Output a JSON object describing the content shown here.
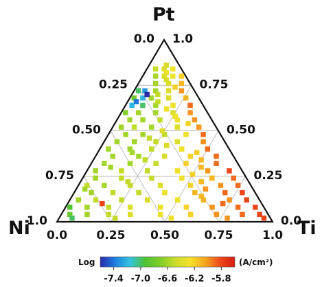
{
  "chart_data": {
    "type": "scatter",
    "subtype": "ternary",
    "components": {
      "top": "Pt",
      "left": "Ni",
      "right": "Ti"
    },
    "grid": true,
    "gridlines": [
      0.25,
      0.5,
      0.75
    ],
    "colorbar": {
      "label_left": "Log",
      "label_right": "(A/cm²)",
      "min": -7.6,
      "max": -5.6,
      "ticks": [
        "-7.4",
        "-7.0",
        "-6.6",
        "-6.2",
        "-5.8"
      ],
      "tick_values": [
        -7.4,
        -7.0,
        -6.6,
        -6.2,
        -5.8
      ],
      "colors": [
        "#2a2aa8",
        "#1f7fe0",
        "#33c4e0",
        "#4fc233",
        "#7fce2a",
        "#c8dc2a",
        "#f4e22a",
        "#f7a81f",
        "#ee4a1a",
        "#d91a12"
      ]
    },
    "axis_ticks": {
      "bottom": [
        "0.0",
        "0.25",
        "0.50",
        "0.75",
        "1.0"
      ],
      "left": [
        "0.0",
        "0.25",
        "0.50",
        "0.75",
        "1.0"
      ],
      "right": [
        "1.0",
        "0.75",
        "0.50",
        "0.25",
        "0.0"
      ]
    },
    "points_columns": [
      "Pt",
      "Ti",
      "log_current"
    ],
    "points": [
      [
        0.84,
        0.04,
        -6.5
      ],
      [
        0.84,
        0.08,
        -6.4
      ],
      [
        0.84,
        0.12,
        -6.3
      ],
      [
        0.8,
        0.06,
        -6.6
      ],
      [
        0.8,
        0.1,
        -6.4
      ],
      [
        0.8,
        0.14,
        -6.3
      ],
      [
        0.8,
        0.18,
        -6.2
      ],
      [
        0.76,
        0.08,
        -6.6
      ],
      [
        0.76,
        0.14,
        -6.4
      ],
      [
        0.76,
        0.2,
        -6.1
      ],
      [
        0.72,
        0.02,
        -7.0
      ],
      [
        0.72,
        0.05,
        -7.3
      ],
      [
        0.72,
        0.1,
        -6.6
      ],
      [
        0.72,
        0.16,
        -6.4
      ],
      [
        0.72,
        0.22,
        -6.0
      ],
      [
        0.68,
        0.02,
        -6.8
      ],
      [
        0.68,
        0.06,
        -7.2
      ],
      [
        0.68,
        0.1,
        -6.6
      ],
      [
        0.68,
        0.18,
        -6.4
      ],
      [
        0.68,
        0.26,
        -6.1
      ],
      [
        0.64,
        0.03,
        -7.2
      ],
      [
        0.64,
        0.08,
        -7.0
      ],
      [
        0.64,
        0.14,
        -6.6
      ],
      [
        0.64,
        0.22,
        -6.3
      ],
      [
        0.64,
        0.3,
        -5.9
      ],
      [
        0.6,
        0.02,
        -6.7
      ],
      [
        0.6,
        0.08,
        -6.6
      ],
      [
        0.6,
        0.16,
        -6.6
      ],
      [
        0.6,
        0.24,
        -6.4
      ],
      [
        0.6,
        0.32,
        -6.0
      ],
      [
        0.56,
        0.06,
        -6.6
      ],
      [
        0.56,
        0.12,
        -6.6
      ],
      [
        0.56,
        0.2,
        -6.5
      ],
      [
        0.56,
        0.28,
        -6.3
      ],
      [
        0.56,
        0.36,
        -6.0
      ],
      [
        0.52,
        0.04,
        -6.6
      ],
      [
        0.52,
        0.1,
        -6.5
      ],
      [
        0.52,
        0.18,
        -6.6
      ],
      [
        0.52,
        0.3,
        -6.4
      ],
      [
        0.52,
        0.4,
        -6.0
      ],
      [
        0.48,
        0.08,
        -6.6
      ],
      [
        0.48,
        0.16,
        -6.6
      ],
      [
        0.48,
        0.26,
        -6.5
      ],
      [
        0.48,
        0.36,
        -6.3
      ],
      [
        0.48,
        0.44,
        -5.9
      ],
      [
        0.44,
        0.06,
        -6.6
      ],
      [
        0.44,
        0.14,
        -6.6
      ],
      [
        0.44,
        0.24,
        -6.5
      ],
      [
        0.44,
        0.34,
        -6.4
      ],
      [
        0.44,
        0.46,
        -6.0
      ],
      [
        0.4,
        0.04,
        -6.6
      ],
      [
        0.4,
        0.14,
        -6.6
      ],
      [
        0.4,
        0.24,
        -6.5
      ],
      [
        0.4,
        0.38,
        -6.3
      ],
      [
        0.4,
        0.5,
        -5.9
      ],
      [
        0.36,
        0.08,
        -6.6
      ],
      [
        0.36,
        0.2,
        -6.6
      ],
      [
        0.36,
        0.32,
        -6.4
      ],
      [
        0.36,
        0.44,
        -6.2
      ],
      [
        0.36,
        0.56,
        -5.9
      ],
      [
        0.32,
        0.06,
        -6.6
      ],
      [
        0.32,
        0.18,
        -6.6
      ],
      [
        0.32,
        0.3,
        -6.5
      ],
      [
        0.32,
        0.44,
        -6.2
      ],
      [
        0.32,
        0.58,
        -5.9
      ],
      [
        0.28,
        0.04,
        -6.6
      ],
      [
        0.28,
        0.16,
        -6.5
      ],
      [
        0.28,
        0.28,
        -6.5
      ],
      [
        0.28,
        0.42,
        -6.3
      ],
      [
        0.28,
        0.56,
        -6.0
      ],
      [
        0.28,
        0.66,
        -5.8
      ],
      [
        0.24,
        0.06,
        -6.6
      ],
      [
        0.24,
        0.18,
        -6.5
      ],
      [
        0.24,
        0.32,
        -6.5
      ],
      [
        0.24,
        0.46,
        -6.3
      ],
      [
        0.24,
        0.6,
        -6.1
      ],
      [
        0.24,
        0.7,
        -5.9
      ],
      [
        0.2,
        0.04,
        -6.5
      ],
      [
        0.2,
        0.12,
        -6.6
      ],
      [
        0.2,
        0.24,
        -6.5
      ],
      [
        0.2,
        0.38,
        -6.4
      ],
      [
        0.2,
        0.52,
        -6.2
      ],
      [
        0.2,
        0.66,
        -6.0
      ],
      [
        0.2,
        0.74,
        -5.9
      ],
      [
        0.16,
        0.08,
        -6.6
      ],
      [
        0.16,
        0.18,
        -6.5
      ],
      [
        0.16,
        0.3,
        -6.5
      ],
      [
        0.16,
        0.42,
        -6.3
      ],
      [
        0.16,
        0.56,
        -6.1
      ],
      [
        0.16,
        0.7,
        -5.9
      ],
      [
        0.16,
        0.78,
        -5.8
      ],
      [
        0.12,
        0.04,
        -6.6
      ],
      [
        0.12,
        0.12,
        -6.5
      ],
      [
        0.12,
        0.24,
        -6.5
      ],
      [
        0.12,
        0.36,
        -6.4
      ],
      [
        0.12,
        0.5,
        -6.3
      ],
      [
        0.12,
        0.62,
        -6.1
      ],
      [
        0.12,
        0.74,
        -6.0
      ],
      [
        0.12,
        0.82,
        -5.8
      ],
      [
        0.08,
        0.02,
        -6.9
      ],
      [
        0.08,
        0.1,
        -6.6
      ],
      [
        0.08,
        0.2,
        -6.5
      ],
      [
        0.08,
        0.3,
        -6.4
      ],
      [
        0.08,
        0.44,
        -6.3
      ],
      [
        0.08,
        0.56,
        -6.2
      ],
      [
        0.08,
        0.68,
        -6.0
      ],
      [
        0.08,
        0.8,
        -5.9
      ],
      [
        0.08,
        0.88,
        -5.8
      ],
      [
        0.04,
        0.04,
        -6.8
      ],
      [
        0.04,
        0.12,
        -6.6
      ],
      [
        0.04,
        0.22,
        -6.5
      ],
      [
        0.04,
        0.32,
        -6.4
      ],
      [
        0.04,
        0.46,
        -6.3
      ],
      [
        0.04,
        0.6,
        -6.2
      ],
      [
        0.04,
        0.72,
        -6.0
      ],
      [
        0.04,
        0.84,
        -5.9
      ],
      [
        0.04,
        0.92,
        -5.8
      ],
      [
        0.02,
        0.06,
        -7.0
      ],
      [
        0.02,
        0.26,
        -6.5
      ],
      [
        0.02,
        0.52,
        -6.3
      ],
      [
        0.02,
        0.78,
        -6.0
      ],
      [
        0.02,
        0.95,
        -5.8
      ],
      [
        0.1,
        0.16,
        -5.8
      ],
      [
        0.18,
        0.04,
        -6.6
      ],
      [
        0.22,
        0.22,
        -6.5
      ],
      [
        0.3,
        0.1,
        -6.6
      ],
      [
        0.34,
        0.24,
        -6.5
      ],
      [
        0.38,
        0.16,
        -6.6
      ],
      [
        0.42,
        0.3,
        -6.4
      ],
      [
        0.46,
        0.2,
        -6.5
      ],
      [
        0.5,
        0.24,
        -6.4
      ],
      [
        0.54,
        0.34,
        -6.2
      ],
      [
        0.58,
        0.26,
        -6.3
      ],
      [
        0.62,
        0.2,
        -6.3
      ],
      [
        0.66,
        0.14,
        -6.5
      ],
      [
        0.7,
        0.12,
        -6.5
      ],
      [
        0.74,
        0.18,
        -6.2
      ],
      [
        0.78,
        0.12,
        -6.4
      ],
      [
        0.82,
        0.1,
        -6.3
      ],
      [
        0.86,
        0.08,
        -6.4
      ],
      [
        0.7,
        0.07,
        -7.6
      ],
      [
        0.66,
        0.04,
        -7.4
      ],
      [
        0.1,
        0.72,
        -5.9
      ],
      [
        0.14,
        0.6,
        -6.1
      ],
      [
        0.18,
        0.6,
        -6.0
      ],
      [
        0.22,
        0.56,
        -6.1
      ],
      [
        0.26,
        0.5,
        -6.2
      ],
      [
        0.3,
        0.52,
        -6.1
      ],
      [
        0.34,
        0.5,
        -6.1
      ],
      [
        0.38,
        0.46,
        -6.2
      ]
    ]
  }
}
